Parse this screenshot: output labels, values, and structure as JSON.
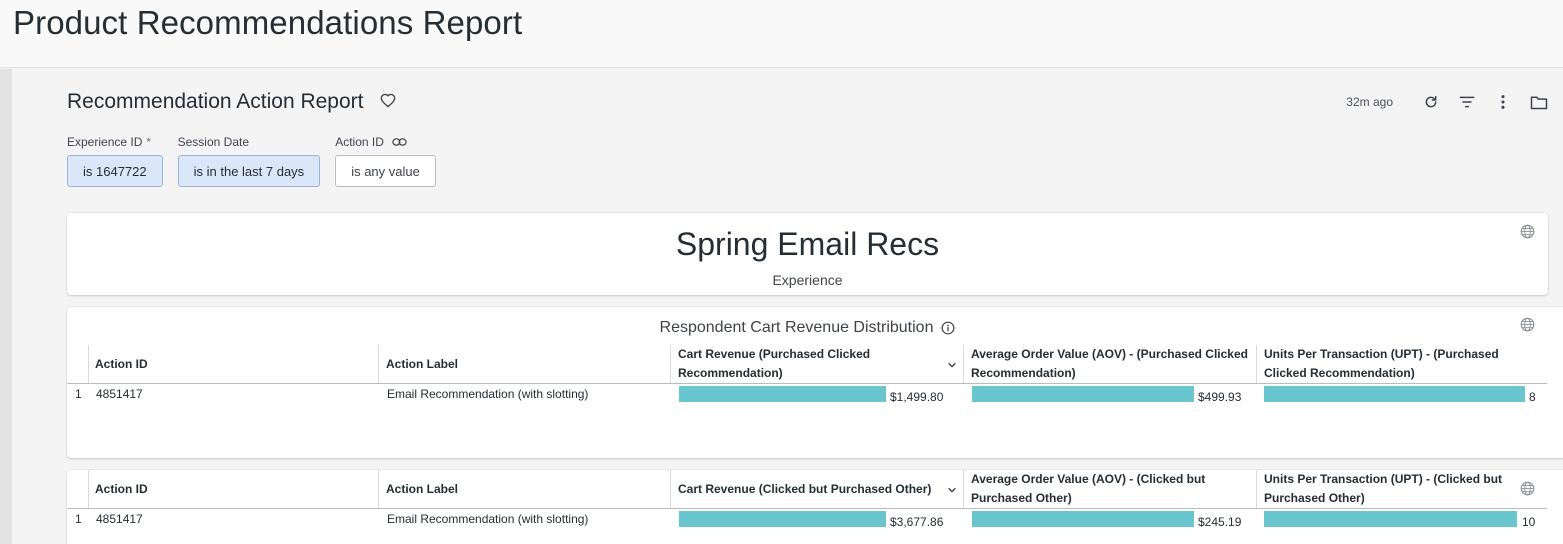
{
  "page": {
    "title": "Product Recommendations Report"
  },
  "dashboard": {
    "title": "Recommendation Action Report"
  },
  "toolbar": {
    "updated": "32m ago"
  },
  "filters": [
    {
      "label": "Experience ID",
      "required_mark": "*",
      "value": "is 1647722"
    },
    {
      "label": "Session Date",
      "value": "is in the last 7 days"
    },
    {
      "label": "Action ID",
      "value": "is any value"
    }
  ],
  "experience_tile": {
    "value": "Spring Email Recs",
    "label": "Experience"
  },
  "distribution_tile": {
    "title": "Respondent Cart Revenue Distribution"
  },
  "table1": {
    "columns": [
      "Action ID",
      "Action Label",
      "Cart Revenue (Purchased Clicked Recommendation)",
      "Average Order Value (AOV) - (Purchased Clicked Recommendation)",
      "Units Per Transaction (UPT) - (Purchased Clicked Recommendation)"
    ],
    "rows": [
      {
        "num": "1",
        "action_id": "4851417",
        "label": "Email Recommendation (with slotting)",
        "cart_revenue": "$1,499.80",
        "aov": "$499.93",
        "upt": "8",
        "cart_revenue_fill": 0.7,
        "aov_fill": 0.75,
        "upt_fill": 0.88
      }
    ]
  },
  "table2": {
    "columns": [
      "Action ID",
      "Action Label",
      "Cart Revenue (Clicked but Purchased Other)",
      "Average Order Value (AOV) - (Clicked but Purchased Other)",
      "Units Per Transaction (UPT) - (Clicked but Purchased Other)"
    ],
    "rows": [
      {
        "num": "1",
        "action_id": "4851417",
        "label": "Email Recommendation (with slotting)",
        "cart_revenue": "$3,677.86",
        "aov": "$245.19",
        "upt": "10",
        "cart_revenue_fill": 0.7,
        "aov_fill": 0.75,
        "upt_fill": 0.85
      }
    ]
  },
  "colors": {
    "bar": "#69c6cf",
    "filter_active": "#dbe7f8"
  }
}
